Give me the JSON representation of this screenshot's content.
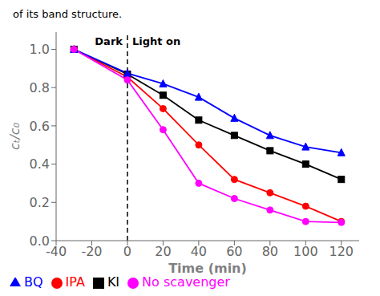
{
  "chart_data": {
    "type": "line",
    "title": "of its band structure.",
    "xlabel": "Time (min)",
    "ylabel": "cₜ/c₀",
    "annotations": [
      "Dark",
      "Light on"
    ],
    "vlines": [
      0
    ],
    "x": [
      -30,
      0,
      20,
      40,
      60,
      80,
      100,
      120
    ],
    "series": [
      {
        "name": "KI",
        "color": "#000000",
        "marker": "square",
        "values": [
          1.0,
          0.87,
          0.76,
          0.63,
          0.55,
          0.47,
          0.4,
          0.32
        ]
      },
      {
        "name": "IPA",
        "color": "#ff0000",
        "marker": "circle",
        "values": [
          1.0,
          0.855,
          0.69,
          0.5,
          0.32,
          0.25,
          0.18,
          0.1
        ]
      },
      {
        "name": "BQ",
        "color": "#0000ff",
        "marker": "triangle",
        "values": [
          1.0,
          0.875,
          0.82,
          0.75,
          0.64,
          0.55,
          0.49,
          0.46
        ]
      },
      {
        "name": "No scavenger",
        "color": "#ff00ff",
        "marker": "circle",
        "values": [
          1.0,
          0.84,
          0.58,
          0.3,
          0.22,
          0.16,
          0.1,
          0.095
        ]
      }
    ],
    "xlim": [
      -40,
      130
    ],
    "ylim": [
      0,
      1.09
    ],
    "xticks": [
      -40,
      -20,
      0,
      20,
      40,
      60,
      80,
      100,
      120
    ],
    "yticks": [
      {
        "value": 0,
        "label": "0.0"
      },
      0.2,
      0.4,
      0.6,
      0.8,
      {
        "value": 1,
        "label": "1.0"
      }
    ],
    "grid": false,
    "legend": "lower left"
  }
}
